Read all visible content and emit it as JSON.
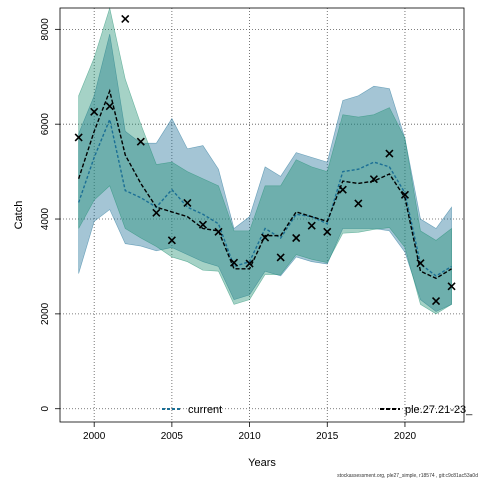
{
  "chart_data": {
    "type": "line",
    "title": "",
    "xlabel": "Years",
    "ylabel": "Catch",
    "xlim": [
      1997.8,
      2023.8
    ],
    "ylim": [
      -280,
      8450
    ],
    "xticks": [
      2000,
      2005,
      2010,
      2015,
      2020
    ],
    "yticks": [
      0,
      2000,
      4000,
      6000,
      8000
    ],
    "grid": true,
    "legend_position": "bottom",
    "footer": "stockassessment.org, ple27_simple, r18574 , git:c9c81ac53a0d",
    "observed": {
      "marker": "x",
      "x": [
        1999,
        2000,
        2001,
        2002,
        2003,
        2004,
        2005,
        2006,
        2007,
        2008,
        2009,
        2010,
        2011,
        2012,
        2013,
        2014,
        2015,
        2016,
        2017,
        2018,
        2019,
        2020,
        2021,
        2022,
        2023
      ],
      "y": [
        5720,
        6260,
        6380,
        8220,
        5630,
        4130,
        3550,
        4340,
        3880,
        3730,
        3080,
        3060,
        3610,
        3190,
        3600,
        3860,
        3730,
        4620,
        4330,
        4840,
        5380,
        4510,
        3070,
        2270,
        2580
      ]
    },
    "series": [
      {
        "name": "current",
        "color": "#1b6f95",
        "fill": "#1b6f95",
        "fill_opacity": 0.4,
        "x": [
          1999,
          2000,
          2001,
          2002,
          2003,
          2004,
          2005,
          2006,
          2007,
          2008,
          2009,
          2010,
          2011,
          2012,
          2013,
          2014,
          2015,
          2016,
          2017,
          2018,
          2019,
          2020,
          2021,
          2022,
          2023
        ],
        "y": [
          4350,
          5300,
          6100,
          4600,
          4450,
          4250,
          4620,
          4250,
          4100,
          3900,
          3000,
          3100,
          3800,
          3600,
          4100,
          4050,
          3900,
          5000,
          5050,
          5200,
          5100,
          4550,
          3050,
          2800,
          3000
        ],
        "lower": [
          2850,
          3950,
          4200,
          3480,
          3430,
          3330,
          3400,
          3250,
          3100,
          3000,
          2300,
          2400,
          2900,
          2800,
          3200,
          3100,
          3050,
          3800,
          3800,
          3800,
          3750,
          3300,
          2300,
          2050,
          2200
        ],
        "upper": [
          5800,
          6600,
          7900,
          5850,
          5600,
          5600,
          6120,
          5480,
          5550,
          5050,
          3800,
          4050,
          5100,
          4900,
          5400,
          5300,
          5200,
          6500,
          6600,
          6800,
          6750,
          5700,
          4000,
          3800,
          4250
        ]
      },
      {
        "name": "ple.27.21-23_",
        "color": "#1e8e70",
        "fill": "#1e8e70",
        "fill_opacity": 0.4,
        "x": [
          1999,
          2000,
          2001,
          2002,
          2003,
          2004,
          2005,
          2006,
          2007,
          2008,
          2009,
          2010,
          2011,
          2012,
          2013,
          2014,
          2015,
          2016,
          2017,
          2018,
          2019,
          2020,
          2021,
          2022,
          2023
        ],
        "y": [
          4850,
          5850,
          6700,
          5350,
          4750,
          4250,
          4150,
          4050,
          3800,
          3750,
          2950,
          2950,
          3650,
          3650,
          4150,
          4050,
          3950,
          4800,
          4750,
          4800,
          4950,
          4450,
          2900,
          2750,
          2950
        ],
        "lower": [
          3800,
          4400,
          4700,
          3800,
          3600,
          3420,
          3200,
          3100,
          2920,
          2900,
          2200,
          2300,
          2830,
          2830,
          3250,
          3150,
          3080,
          3700,
          3720,
          3780,
          3820,
          3400,
          2200,
          2000,
          2200
        ],
        "upper": [
          6600,
          7400,
          8450,
          6950,
          6000,
          5150,
          5200,
          5000,
          4850,
          4700,
          3750,
          3750,
          4700,
          4700,
          5250,
          5100,
          5000,
          6200,
          6150,
          6200,
          6350,
          5700,
          3750,
          3550,
          3800
        ]
      }
    ]
  }
}
